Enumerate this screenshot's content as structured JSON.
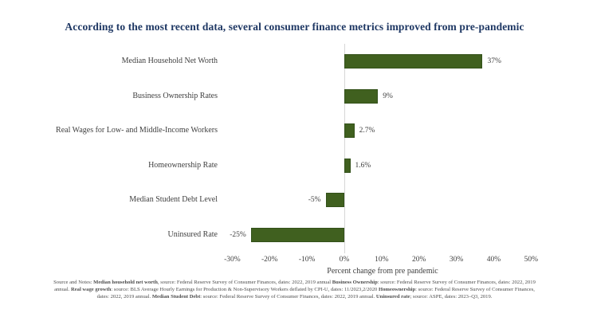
{
  "title": "According to the most recent data, several consumer finance metrics improved from pre-pandemic",
  "chart_data": {
    "type": "bar",
    "orientation": "horizontal",
    "title": "According to the most recent data, several consumer finance metrics improved from pre-pandemic",
    "categories": [
      "Median Household Net Worth",
      "Business Ownership Rates",
      "Real Wages for Low- and Middle-Income Workers",
      "Homeownership Rate",
      "Median Student Debt Level",
      "Uninsured Rate"
    ],
    "values": [
      37,
      9,
      2.7,
      1.6,
      -5,
      -25
    ],
    "value_labels": [
      "37%",
      "9%",
      "2.7%",
      "1.6%",
      "-5%",
      "-25%"
    ],
    "xlabel": "Percent change from pre pandemic",
    "ylabel": "",
    "xlim": [
      -30,
      50
    ],
    "x_ticks": [
      -30,
      -20,
      -10,
      0,
      10,
      20,
      30,
      40,
      50
    ],
    "x_tick_labels": [
      "-30%",
      "-20%",
      "-10%",
      "0%",
      "10%",
      "20%",
      "30%",
      "40%",
      "50%"
    ],
    "grid": false,
    "legend": null,
    "zero_baseline": true
  },
  "colors": {
    "title_text": "#1f3864",
    "bar_fill": "#40601f",
    "bar_border": "#33511a",
    "axis_text": "#404040",
    "zero_line": "#d6d6d6",
    "footnote_text": "#4d4d4d",
    "background": "#ffffff"
  },
  "footnote": {
    "segments": [
      {
        "text": "Source and Notes: ",
        "bold": false
      },
      {
        "text": "Median household net worth",
        "bold": true
      },
      {
        "text": ", source: Federal Reserve Survey of Consumer Finances, dates: 2022, 2019 annual ",
        "bold": false
      },
      {
        "text": "Business Ownership",
        "bold": true
      },
      {
        "text": ": source: Federal Reserve Survey of Consumer Finances, dates: 2022, 2019 annual. ",
        "bold": false
      },
      {
        "text": "Real wage growth",
        "bold": true
      },
      {
        "text": ": source: BLS Average Hourly Earnings for Production & Non-Supervisory Workers deflated by CPI-U, dates: 11/2023,2/2020 ",
        "bold": false
      },
      {
        "text": "Homeownership",
        "bold": true
      },
      {
        "text": ": source: Federal Reserve Survey of Consumer Finances, dates: 2022, 2019 annual. ",
        "bold": false
      },
      {
        "text": "Median Student Debt",
        "bold": true
      },
      {
        "text": ": source: Federal Reserve Survey of Consumer Finances, dates: 2022, 2019 annual. ",
        "bold": false
      },
      {
        "text": "Uninsured rate",
        "bold": true
      },
      {
        "text": "; source: ASPE, dates: 2023–Q3, 2019.",
        "bold": false
      }
    ]
  }
}
